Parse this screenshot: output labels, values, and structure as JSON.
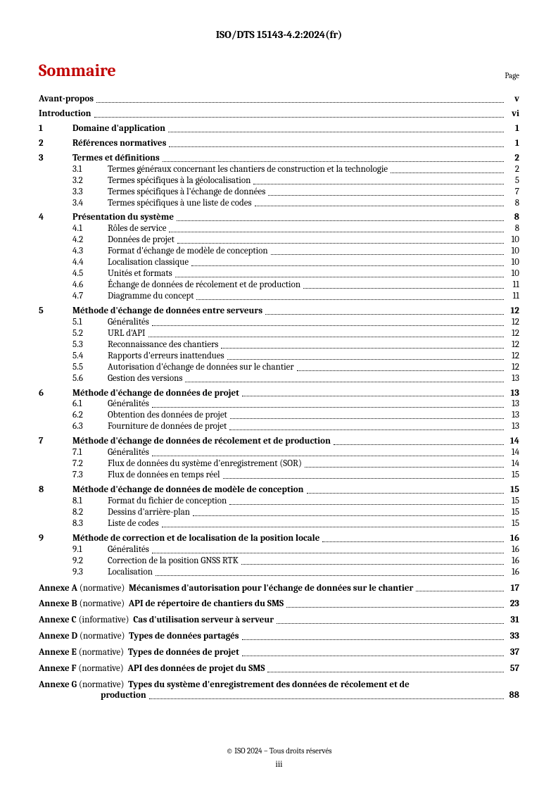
{
  "doc_header": "ISO/DTS 15143-4.2:2024(fr)",
  "title": "Sommaire",
  "page_label": "Page",
  "footer_copyright": "© ISO 2024 – Tous droits réservés",
  "footer_page": "iii",
  "front_matter": [
    {
      "label": "Avant-propos",
      "page": "v"
    },
    {
      "label": "Introduction",
      "page": "vi"
    }
  ],
  "sections": [
    {
      "num": "1",
      "label": "Domaine d'application",
      "page": "1",
      "subs": []
    },
    {
      "num": "2",
      "label": "Références normatives",
      "page": "1",
      "subs": []
    },
    {
      "num": "3",
      "label": "Termes et définitions",
      "page": "2",
      "subs": [
        {
          "num": "3.1",
          "label": "Termes généraux concernant les chantiers de construction et la technologie",
          "page": "2"
        },
        {
          "num": "3.2",
          "label": "Termes spécifiques à la géolocalisation",
          "page": "5"
        },
        {
          "num": "3.3",
          "label": "Termes spécifiques à l'échange de données",
          "page": "7"
        },
        {
          "num": "3.4",
          "label": "Termes spécifiques à une liste de codes",
          "page": "8"
        }
      ]
    },
    {
      "num": "4",
      "label": "Présentation du système",
      "page": "8",
      "subs": [
        {
          "num": "4.1",
          "label": "Rôles de service",
          "page": "8"
        },
        {
          "num": "4.2",
          "label": "Données de projet",
          "page": "10"
        },
        {
          "num": "4.3",
          "label": "Format d'échange de modèle de conception",
          "page": "10"
        },
        {
          "num": "4.4",
          "label": "Localisation classique",
          "page": "10"
        },
        {
          "num": "4.5",
          "label": "Unités et formats",
          "page": "10"
        },
        {
          "num": "4.6",
          "label": "Échange de données de récolement et de production",
          "page": "11"
        },
        {
          "num": "4.7",
          "label": "Diagramme du concept",
          "page": "11"
        }
      ]
    },
    {
      "num": "5",
      "label": "Méthode d'échange de données entre serveurs",
      "page": "12",
      "subs": [
        {
          "num": "5.1",
          "label": "Généralités",
          "page": "12"
        },
        {
          "num": "5.2",
          "label": "URL d'API",
          "page": "12"
        },
        {
          "num": "5.3",
          "label": "Reconnaissance des chantiers",
          "page": "12"
        },
        {
          "num": "5.4",
          "label": "Rapports d'erreurs inattendues",
          "page": "12"
        },
        {
          "num": "5.5",
          "label": "Autorisation d'échange de données sur le chantier",
          "page": "12"
        },
        {
          "num": "5.6",
          "label": "Gestion des versions",
          "page": "13"
        }
      ]
    },
    {
      "num": "6",
      "label": "Méthode d'échange de données de projet",
      "page": "13",
      "subs": [
        {
          "num": "6.1",
          "label": "Généralités",
          "page": "13"
        },
        {
          "num": "6.2",
          "label": "Obtention des données de projet",
          "page": "13"
        },
        {
          "num": "6.3",
          "label": "Fourniture de données de projet",
          "page": "13"
        }
      ]
    },
    {
      "num": "7",
      "label": "Méthode d'échange de données de récolement et de production",
      "page": "14",
      "subs": [
        {
          "num": "7.1",
          "label": "Généralités",
          "page": "14"
        },
        {
          "num": "7.2",
          "label": "Flux de données du système d'enregistrement (SOR)",
          "page": "14"
        },
        {
          "num": "7.3",
          "label": "Flux de données en temps réel",
          "page": "15"
        }
      ]
    },
    {
      "num": "8",
      "label": "Méthode d'échange de données de modèle de conception",
      "page": "15",
      "subs": [
        {
          "num": "8.1",
          "label": "Format du fichier de conception",
          "page": "15"
        },
        {
          "num": "8.2",
          "label": "Dessins d'arrière-plan",
          "page": "15"
        },
        {
          "num": "8.3",
          "label": "Liste de codes",
          "page": "15"
        }
      ]
    },
    {
      "num": "9",
      "label": "Méthode de correction et de localisation de la position locale",
      "page": "16",
      "subs": [
        {
          "num": "9.1",
          "label": "Généralités",
          "page": "16"
        },
        {
          "num": "9.2",
          "label": "Correction de la position GNSS RTK",
          "page": "16"
        },
        {
          "num": "9.3",
          "label": "Localisation",
          "page": "16"
        }
      ]
    }
  ],
  "annexes": [
    {
      "letter": "Annexe A",
      "kind": "(normative)",
      "label": "Mécanismes d'autorisation pour l'échange de données sur le chantier",
      "page": "17",
      "wrap": false
    },
    {
      "letter": "Annexe B",
      "kind": "(normative)",
      "label": "API de répertoire de chantiers du SMS",
      "page": "23",
      "wrap": false
    },
    {
      "letter": "Annexe C",
      "kind": "(informative)",
      "label": "Cas d'utilisation serveur à serveur",
      "page": "31",
      "wrap": false
    },
    {
      "letter": "Annexe D",
      "kind": "(normative)",
      "label": "Types de données partagés",
      "page": "33",
      "wrap": false
    },
    {
      "letter": "Annexe E",
      "kind": "(normative)",
      "label": "Types de données de projet",
      "page": "37",
      "wrap": false
    },
    {
      "letter": "Annexe F",
      "kind": "(normative)",
      "label": "API des données de projet du SMS",
      "page": "57",
      "wrap": false
    },
    {
      "letter": "Annexe G",
      "kind": "(normative)",
      "label_line1": "Types du système d'enregistrement des données de récolement et de",
      "label_line2": "production",
      "page": "88",
      "wrap": true
    }
  ]
}
